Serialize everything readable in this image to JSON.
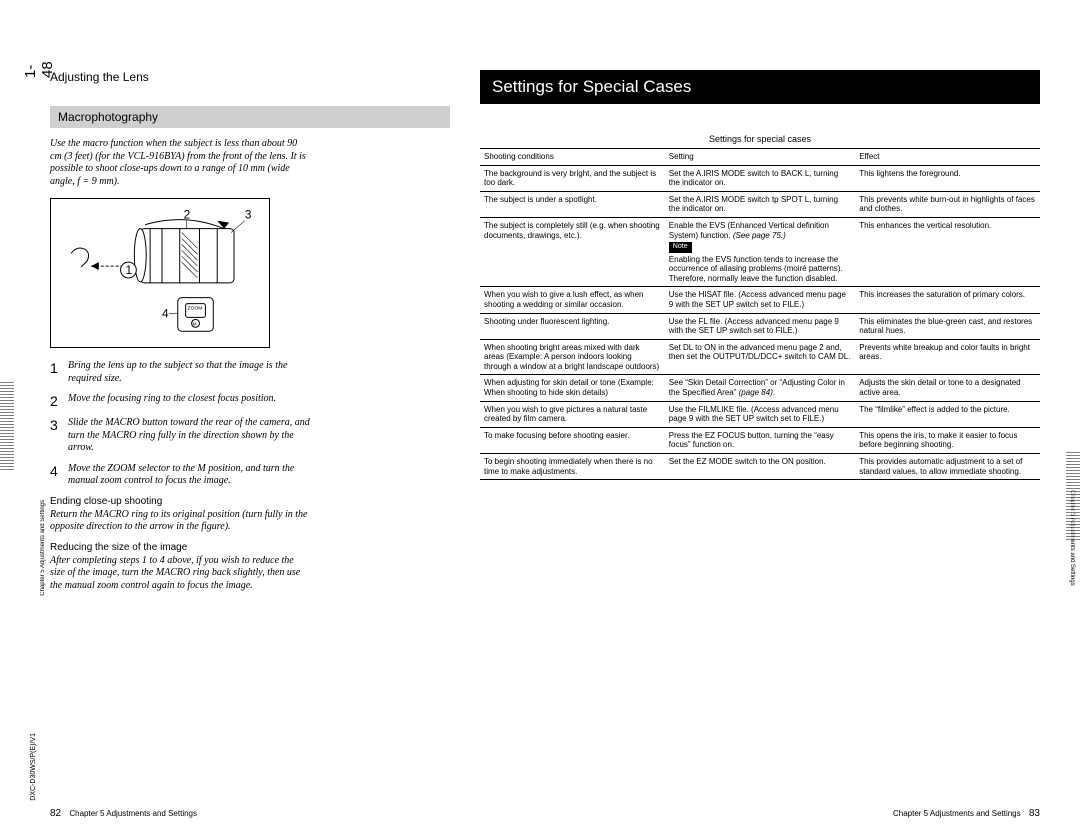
{
  "spine": {
    "page_num": "1-48",
    "chapter_side": "Chapter 5 Adjustments and Settings",
    "doc_id": "DXC-D30WS/P(E)/V1"
  },
  "left": {
    "running_head": "Adjusting the Lens",
    "section": "Macrophotography",
    "intro": "Use the macro function when the subject is less than about 90 cm (3 feet) (for the VCL-916BYA) from the front of the lens. It is possible to shoot close-ups down to a range of 10 mm (wide angle, f = 9 mm).",
    "fig": {
      "l1": "1",
      "l2": "2",
      "l3": "3",
      "l4": "4",
      "zoom": "ZOOM",
      "m": "M"
    },
    "steps": [
      {
        "n": "1",
        "t": "Bring the lens up to the subject so that the image is the required size."
      },
      {
        "n": "2",
        "t": "Move the focusing ring to the closest focus position."
      },
      {
        "n": "3",
        "t": "Slide the MACRO button toward the rear of the camera, and turn the MACRO ring fully in the direction shown by the arrow."
      },
      {
        "n": "4",
        "t": "Move the ZOOM selector to the M position, and turn the manual zoom control to focus the image."
      }
    ],
    "sub1_head": "Ending close-up shooting",
    "sub1_body": "Return the MACRO ring to its original position (turn fully in the opposite direction to the arrow in the figure).",
    "sub2_head": "Reducing the size of the image",
    "sub2_body": "After completing steps 1 to 4 above, if you wish to reduce the size of the image, turn the MACRO ring back slightly, then use the manual zoom control again to focus the image.",
    "footer_pn": "82",
    "footer_txt": "Chapter 5  Adjustments and Settings"
  },
  "right": {
    "title": "Settings for Special Cases",
    "caption": "Settings for special cases",
    "headers": [
      "Shooting conditions",
      "Setting",
      "Effect"
    ],
    "rows": [
      [
        "The background is very bright, and the subject is too dark.",
        "Set the A.IRIS MODE switch to BACK L, turning the indicator on.",
        "This lightens the foreground."
      ],
      [
        "The subject is under a spotlight.",
        "Set the A.IRIS MODE switch tp SPOT L, turning the indicator on.",
        "This prevents white burn-out in highlights of faces and clothes."
      ],
      [
        "The subject is completely still (e.g. when shooting documents, drawings, etc.).",
        "Enable the EVS (Enhanced Vertical definition System) function.  <span class='ital'>(See page 75.)</span><br><span class='note-tag'>Note</span><br>Enabling the EVS function tends to increase the occurrence of aliasing problems (moir&eacute; patterns). Therefore, normally leave the function disabled.",
        "This enhances the vertical resolution."
      ],
      [
        "When you wish to give a lush effect, as when shooting a wedding or similar occasion.",
        "Use the HISAT file. (Access advanced menu page 9 with the SET UP switch set to FILE.)",
        "This increases the saturation of primary colors."
      ],
      [
        "Shooting under fluorescent lighting.",
        "Use the FL file. (Access advanced menu page 9 with the SET UP switch set to FILE.)",
        "This eliminates the blue-green cast, and restores natural hues."
      ],
      [
        "When shooting bright areas mixed with dark areas (Example: A person indoors looking through a window at a bright landscape outdoors)",
        "Set DL to ON in the advanced menu page 2 and, then set the OUTPUT/DL/DCC+ switch to CAM DL.",
        "Prevents white breakup and color faults in bright areas."
      ],
      [
        "When adjusting for skin detail or tone (Example: When shooting to hide skin details)",
        "See &ldquo;Skin Detail Correction&rdquo; or &ldquo;Adjusting Color in the Specified Area&rdquo; <span class='ital'>(page 84)</span>.",
        "Adjusts the skin detail or tone to a designated active area."
      ],
      [
        "When you wish to give pictures a natural taste created by film camera.",
        "Use the FILMLIKE file. (Access advanced menu page 9 with the SET UP switch set to FILE.)",
        "The &ldquo;filmlike&rdquo; effect is added to the picture."
      ],
      [
        "To make focusing before shooting easier.",
        "Press the EZ FOCUS button, turning the &ldquo;easy focus&rdquo; function on.",
        "This opens the iris, to make it easier to focus before beginning shooting."
      ],
      [
        "To begin shooting immediately when there is no time to make adjustments.",
        "Set the EZ MODE switch to the ON position.",
        "This provides automatic adjustment to a set of standard values, to allow immediate shooting."
      ]
    ],
    "footer_txt": "Chapter 5  Adjustments and Settings",
    "footer_pn": "83",
    "side_label": "Chapter 5 Adjustments and Settings"
  }
}
